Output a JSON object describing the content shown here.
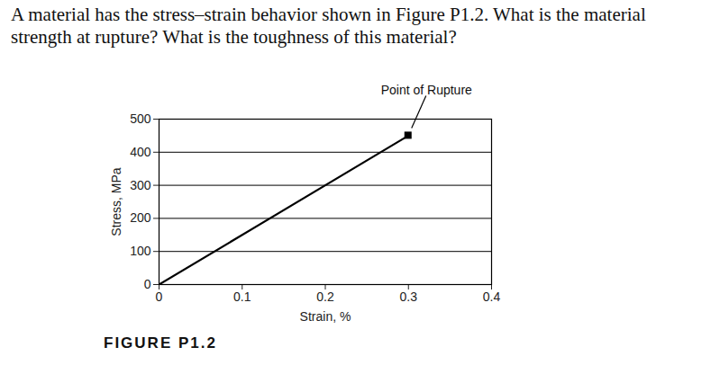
{
  "chart_data": {
    "type": "line",
    "title": "A material has the stress–strain behavior shown in Figure P1.2. What is the material strength at rupture? What is the toughness of this material?",
    "caption": "FIGURE P1.2",
    "x_label": "Strain, %",
    "y_label": "Stress, MPa",
    "x": [
      0,
      0.3
    ],
    "series": [
      {
        "name": "Stress",
        "color": "#000000",
        "values": [
          0,
          450
        ]
      }
    ],
    "xlim": [
      0,
      0.4
    ],
    "xticks": [
      0,
      0.1,
      0.2,
      0.3,
      0.4
    ],
    "ylim": [
      0,
      500
    ],
    "yticks": [
      0,
      100,
      200,
      300,
      400,
      500
    ],
    "grid": true,
    "annotations": [
      {
        "text": "Point of Rupture",
        "x": 0.3,
        "y": 450
      }
    ]
  }
}
